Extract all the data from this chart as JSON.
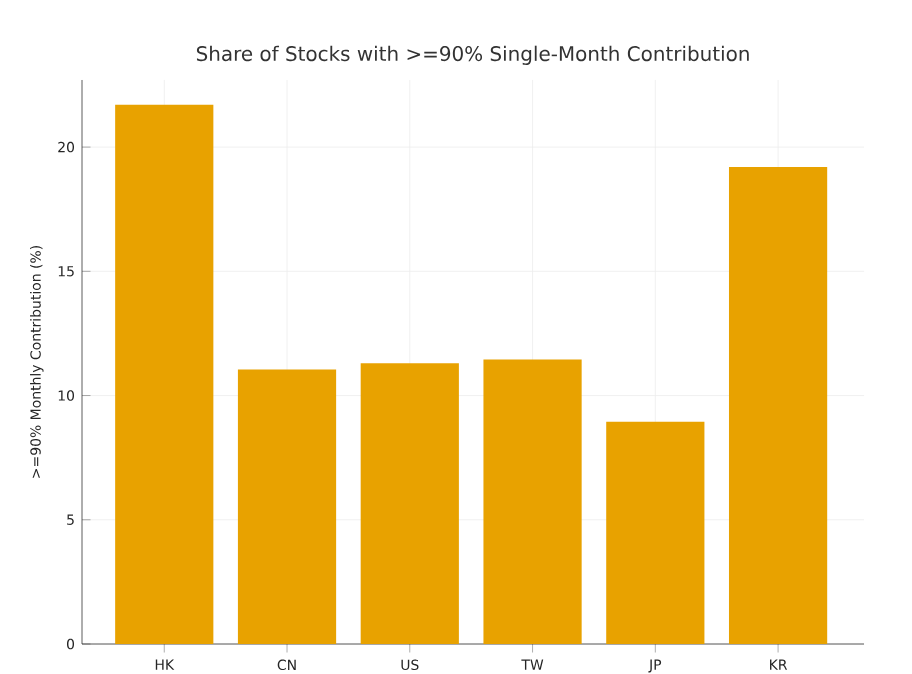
{
  "chart_data": {
    "type": "bar",
    "title": "Share of Stocks with >=90% Single-Month Contribution",
    "ylabel": ">=90% Monthly Contribution (%)",
    "categories": [
      "HK",
      "CN",
      "US",
      "TW",
      "JP",
      "KR"
    ],
    "values": [
      21.7,
      11.05,
      11.3,
      11.45,
      8.95,
      19.2
    ],
    "color": "#e8a200",
    "ylim": [
      0,
      22.7
    ],
    "yticks": [
      0,
      5,
      10,
      15,
      20
    ],
    "grid": true
  }
}
